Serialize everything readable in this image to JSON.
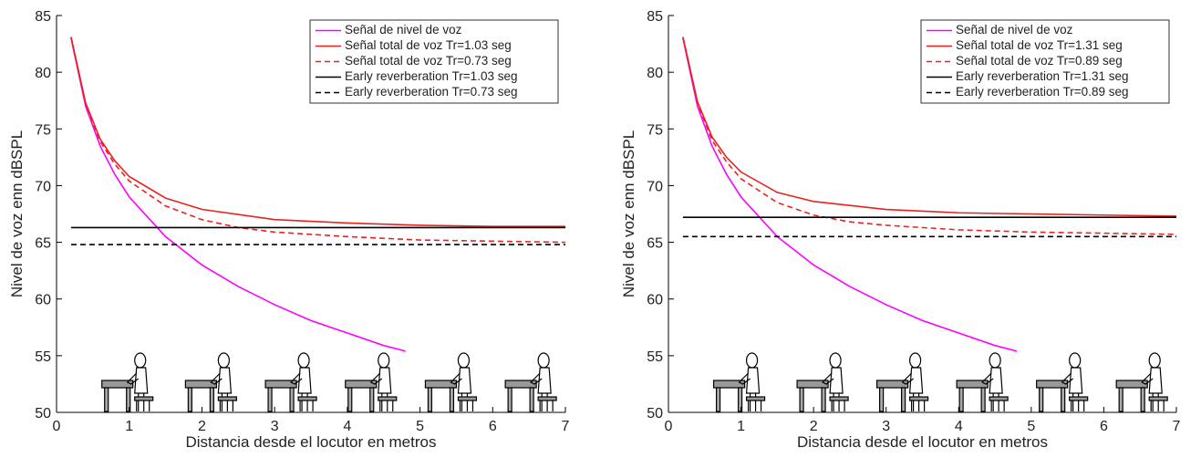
{
  "chart_data": [
    {
      "type": "line",
      "xlabel": "Distancia desde el locutor en metros",
      "ylabel": "Nivel de voz enn dBSPL",
      "xlim": [
        0,
        7
      ],
      "ylim": [
        50,
        85
      ],
      "xticks": [
        0,
        1,
        2,
        3,
        4,
        5,
        6,
        7
      ],
      "yticks": [
        50,
        55,
        60,
        65,
        70,
        75,
        80,
        85
      ],
      "legend": "upper right",
      "series": [
        {
          "name": "Señal de nivel de voz",
          "color": "#ff00ff",
          "dash": false,
          "x": [
            0.2,
            0.4,
            0.6,
            0.8,
            1,
            1.5,
            2,
            2.5,
            3,
            3.5,
            4,
            4.5,
            4.8
          ],
          "values": [
            83,
            77,
            73.5,
            71,
            69,
            65.5,
            63,
            61.1,
            59.5,
            58.1,
            57,
            55.9,
            55.4
          ]
        },
        {
          "name": "Señal total de voz Tr=1.03 seg",
          "color": "#e8231f",
          "dash": false,
          "x": [
            0.2,
            0.4,
            0.6,
            0.8,
            1,
            1.5,
            2,
            3,
            4,
            5,
            6,
            7
          ],
          "values": [
            83.1,
            77.3,
            74.1,
            72.2,
            70.8,
            68.9,
            67.9,
            67,
            66.7,
            66.5,
            66.4,
            66.4
          ]
        },
        {
          "name": "Señal total de voz Tr=0.73 seg",
          "color": "#e8231f",
          "dash": true,
          "x": [
            0.2,
            0.4,
            0.6,
            0.8,
            1,
            1.5,
            2,
            2.5,
            3,
            4,
            5,
            6,
            7
          ],
          "values": [
            83.1,
            77.2,
            73.9,
            71.9,
            70.4,
            68.2,
            67,
            66.3,
            65.9,
            65.5,
            65.2,
            65.1,
            65
          ]
        },
        {
          "name": "Early reverberation Tr=1.03 seg",
          "color": "#000000",
          "dash": false,
          "x": [
            0.2,
            7
          ],
          "values": [
            66.3,
            66.3
          ]
        },
        {
          "name": "Early reverberation Tr=0.73 seg",
          "color": "#000000",
          "dash": true,
          "x": [
            0.2,
            7
          ],
          "values": [
            64.8,
            64.8
          ]
        }
      ]
    },
    {
      "type": "line",
      "xlabel": "Distancia desde el locutor en metros",
      "ylabel": "Nivel de voz enn dBSPL",
      "xlim": [
        0,
        7
      ],
      "ylim": [
        50,
        85
      ],
      "xticks": [
        0,
        1,
        2,
        3,
        4,
        5,
        6,
        7
      ],
      "yticks": [
        50,
        55,
        60,
        65,
        70,
        75,
        80,
        85
      ],
      "legend": "upper right",
      "series": [
        {
          "name": "Señal de nivel de voz",
          "color": "#ff00ff",
          "dash": false,
          "x": [
            0.2,
            0.4,
            0.6,
            0.8,
            1,
            1.5,
            2,
            2.5,
            3,
            3.5,
            4,
            4.5,
            4.8
          ],
          "values": [
            83,
            77,
            73.5,
            71,
            69,
            65.5,
            63,
            61.1,
            59.5,
            58.1,
            57,
            55.9,
            55.4
          ]
        },
        {
          "name": "Señal total de voz Tr=1.31 seg",
          "color": "#e8231f",
          "dash": false,
          "x": [
            0.2,
            0.4,
            0.6,
            0.8,
            1,
            1.5,
            2,
            3,
            4,
            5,
            6,
            7
          ],
          "values": [
            83.1,
            77.4,
            74.3,
            72.5,
            71.2,
            69.4,
            68.6,
            67.9,
            67.6,
            67.5,
            67.4,
            67.3
          ]
        },
        {
          "name": "Señal total de voz Tr=0.89 seg",
          "color": "#e8231f",
          "dash": true,
          "x": [
            0.2,
            0.4,
            0.6,
            0.8,
            1,
            1.5,
            2,
            2.5,
            3,
            4,
            5,
            6,
            7
          ],
          "values": [
            83.1,
            77.3,
            74,
            72.1,
            70.6,
            68.5,
            67.4,
            66.8,
            66.5,
            66.1,
            65.9,
            65.8,
            65.7
          ]
        },
        {
          "name": "Early reverberation Tr=1.31 seg",
          "color": "#000000",
          "dash": false,
          "x": [
            0.2,
            7
          ],
          "values": [
            67.2,
            67.2
          ]
        },
        {
          "name": "Early reverberation Tr=0.89 seg",
          "color": "#000000",
          "dash": true,
          "x": [
            0.2,
            7
          ],
          "values": [
            65.5,
            65.5
          ]
        }
      ]
    }
  ]
}
